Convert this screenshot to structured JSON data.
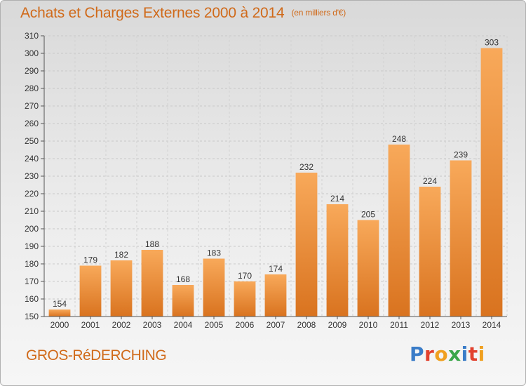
{
  "header": {
    "title": "Achats et Charges Externes 2000 à 2014",
    "unit": "(en milliers d'€)"
  },
  "footer": {
    "town": "GROS-RéDERCHING",
    "brand": "Proxiti"
  },
  "colors": {
    "accent": "#d06a1a",
    "bar_light": "#f8a95a",
    "bar_dark": "#d9731f",
    "brand_letters": [
      "#3a7cc8",
      "#e2412e",
      "#f0a020",
      "#3aa64a",
      "#3a7cc8",
      "#e2412e",
      "#f0a020"
    ]
  },
  "chart_data": {
    "type": "bar",
    "categories": [
      "2000",
      "2001",
      "2002",
      "2003",
      "2004",
      "2005",
      "2006",
      "2007",
      "2008",
      "2009",
      "2010",
      "2011",
      "2012",
      "2013",
      "2014"
    ],
    "values": [
      154,
      179,
      182,
      188,
      168,
      183,
      170,
      174,
      232,
      214,
      205,
      248,
      224,
      239,
      303
    ],
    "ylim": [
      150,
      310
    ],
    "yticks": [
      150,
      160,
      170,
      180,
      190,
      200,
      210,
      220,
      230,
      240,
      250,
      260,
      270,
      280,
      290,
      300,
      310
    ],
    "grid": true,
    "title": "Achats et Charges Externes 2000 à 2014"
  }
}
